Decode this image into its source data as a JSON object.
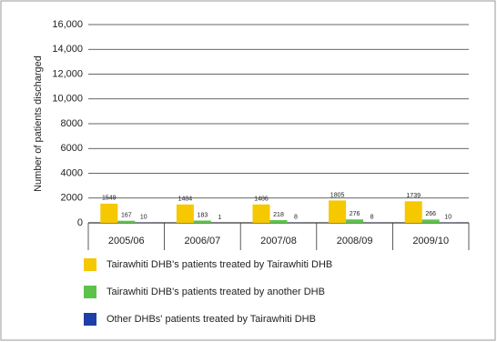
{
  "chart_data": {
    "type": "bar",
    "y_label": "Number of patients discharged",
    "categories": [
      "2005/06",
      "2006/07",
      "2007/08",
      "2008/09",
      "2009/10"
    ],
    "series": [
      {
        "name": "Tairawhiti DHB's patients treated by Tairawhiti DHB",
        "color": "#f5c800",
        "values": [
          1549,
          1484,
          1486,
          1805,
          1739
        ]
      },
      {
        "name": "Tairawhiti DHB's patients treated by another DHB",
        "color": "#5cc24a",
        "values": [
          167,
          183,
          218,
          276,
          266
        ]
      },
      {
        "name": "Other DHBs' patients treated by Tairawhiti DHB",
        "color": "#1f3fa8",
        "values": [
          10,
          1,
          8,
          8,
          10
        ]
      }
    ],
    "ylim": [
      0,
      16000
    ],
    "yticks": [
      0,
      2000,
      4000,
      6000,
      8000,
      {
        "value": 10000,
        "label": "10,000"
      },
      {
        "value": 12000,
        "label": "12,000"
      },
      {
        "value": 14000,
        "label": "14,000"
      },
      {
        "value": 16000,
        "label": "16,000"
      }
    ],
    "grid": true
  }
}
